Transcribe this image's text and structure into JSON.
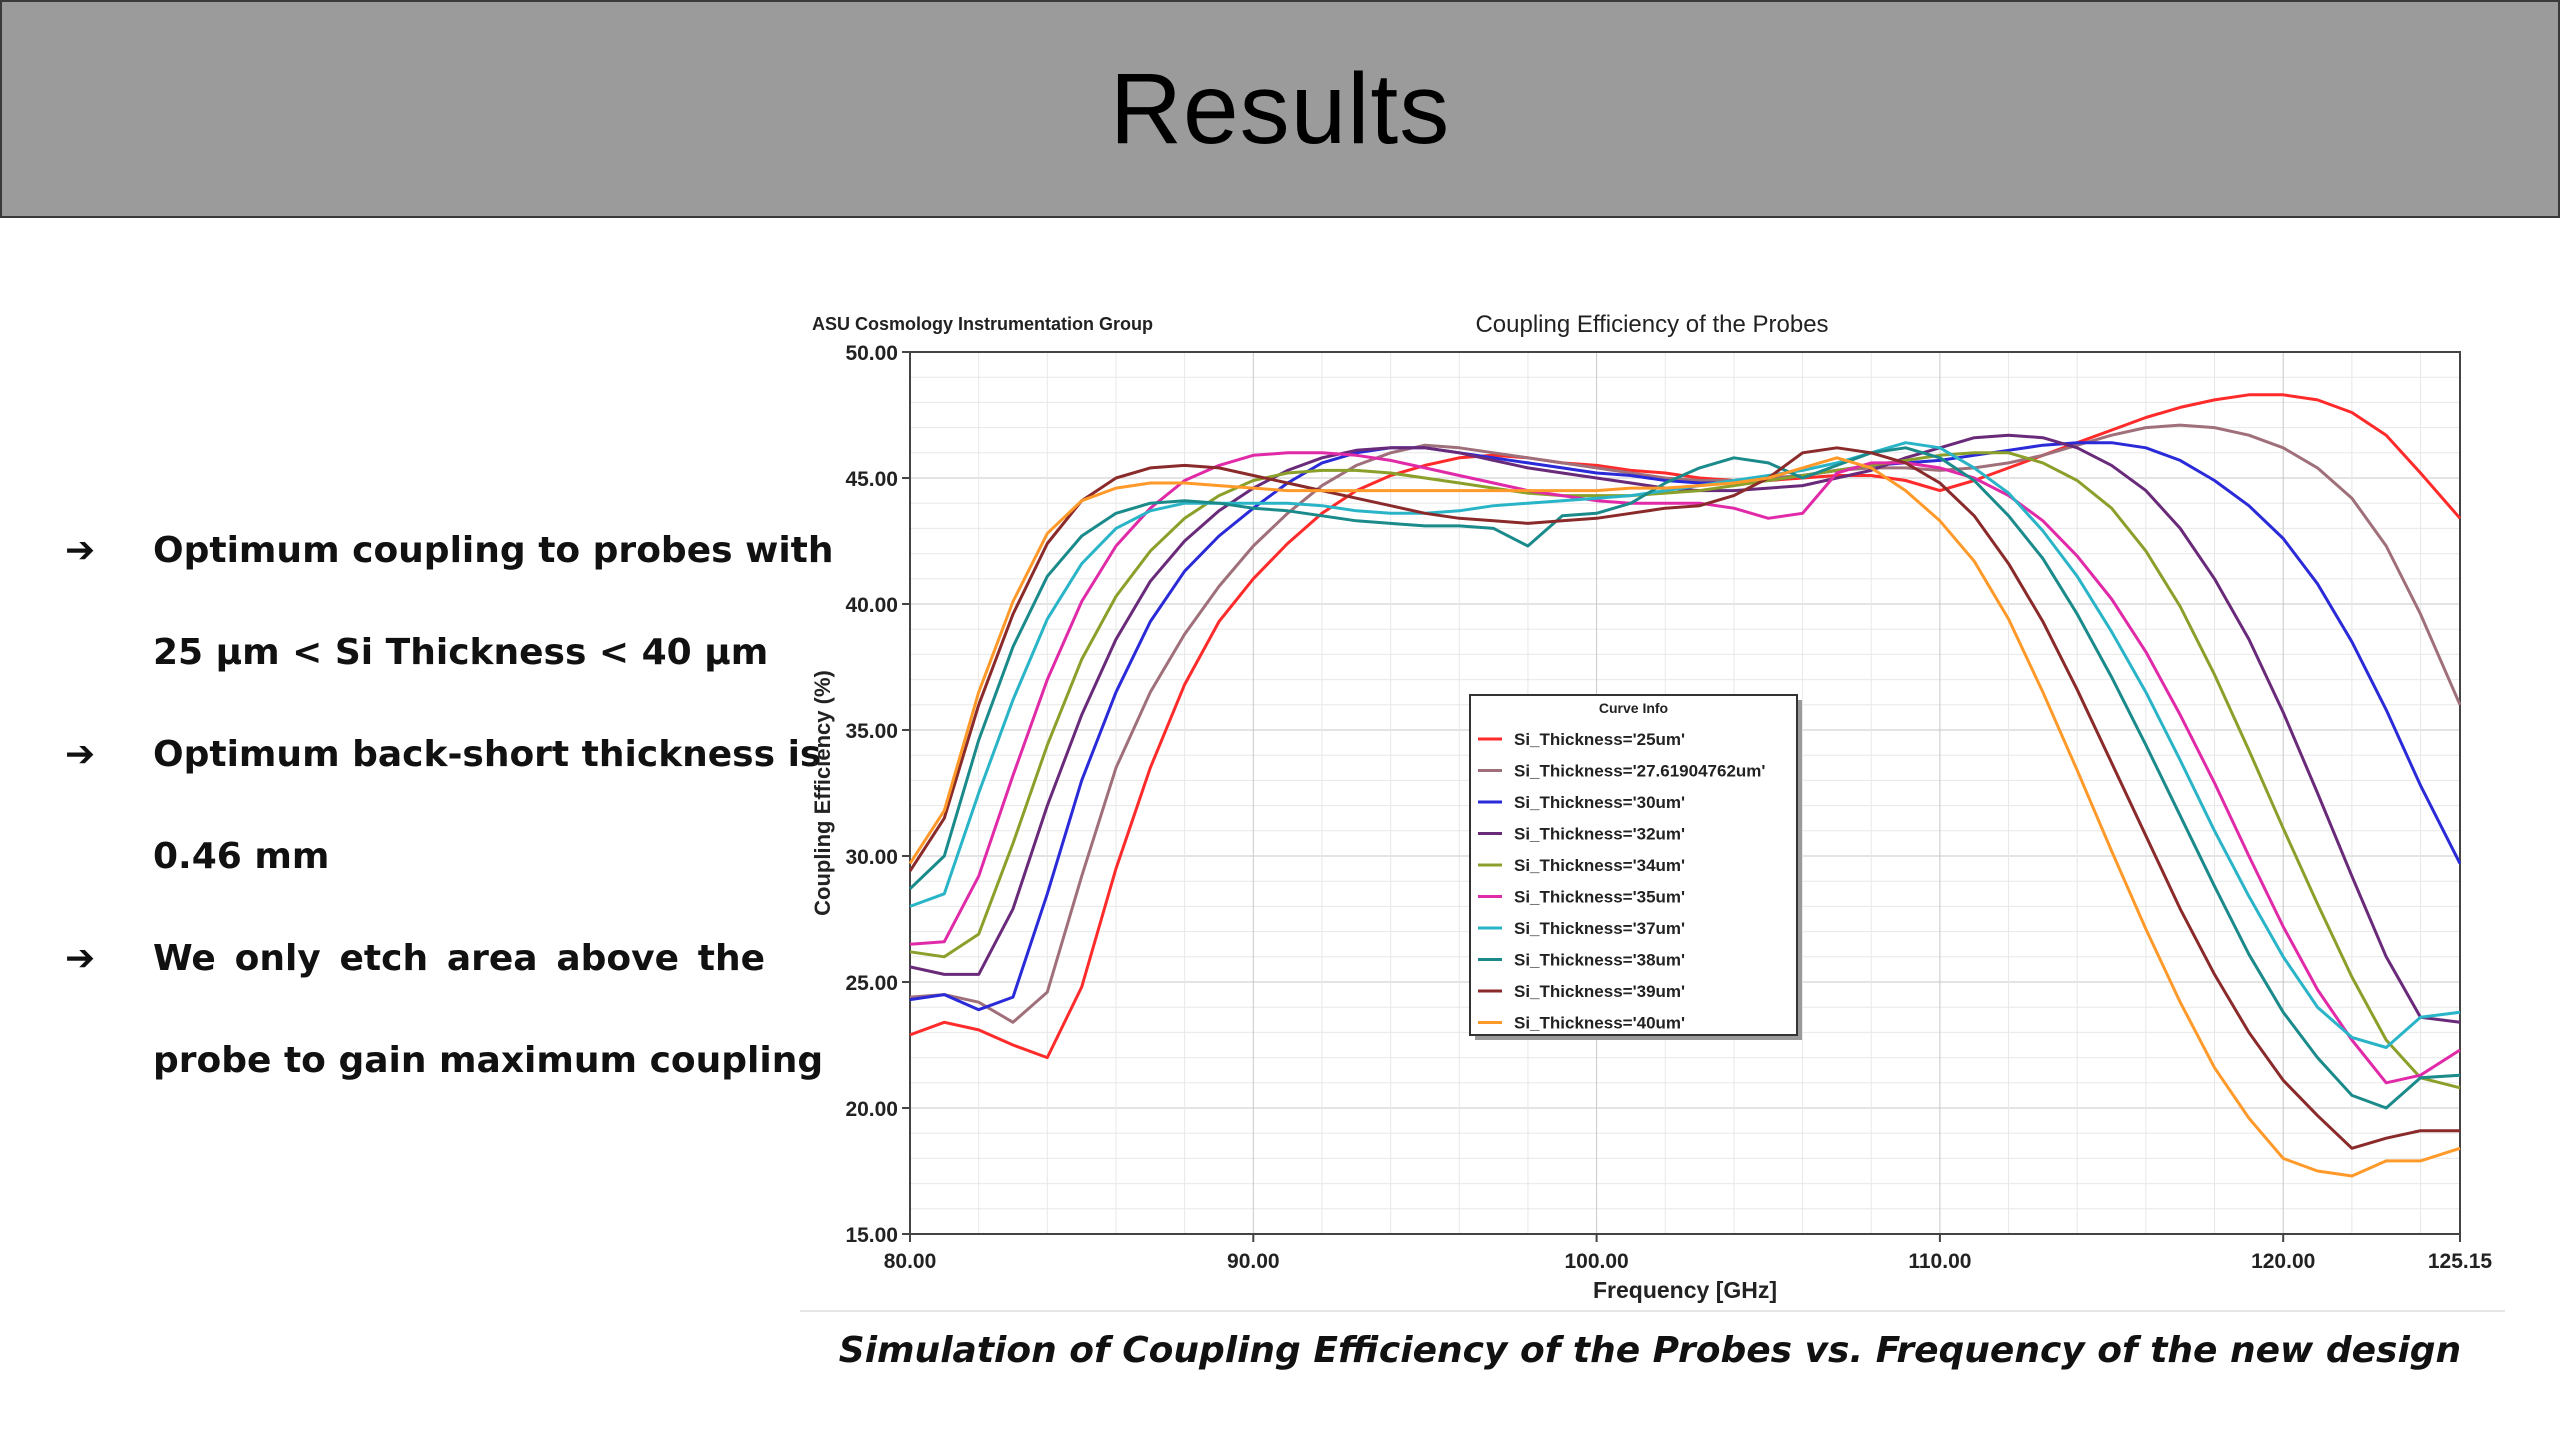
{
  "slide": {
    "title": "Results",
    "bullets": [
      {
        "lines": [
          "Optimum coupling to probes with",
          "25 µm < Si Thickness < 40 µm"
        ]
      },
      {
        "lines": [
          "Optimum back-short thickness is",
          "0.46 mm"
        ]
      },
      {
        "lines": [
          "We only etch area above the",
          "probe to gain maximum coupling"
        ]
      }
    ],
    "caption": "Simulation of Coupling Efficiency of the Probes vs. Frequency of the new design"
  },
  "chart_data": {
    "type": "line",
    "header_left": "ASU Cosmology Instrumentation Group",
    "title": "Coupling Efficiency of  the Probes",
    "xlabel": "Frequency [GHz]",
    "ylabel": "Coupling Efficiency (%)",
    "xlim": [
      80.0,
      125.15
    ],
    "ylim": [
      15.0,
      50.0
    ],
    "xticks": [
      "80.00",
      "90.00",
      "100.00",
      "110.00",
      "120.00",
      "125.15"
    ],
    "yticks": [
      "15.00",
      "20.00",
      "25.00",
      "30.00",
      "35.00",
      "40.00",
      "45.00",
      "50.00"
    ],
    "legend_title": "Curve Info",
    "legend_position": "center",
    "grid": true,
    "x": [
      80,
      81,
      82,
      83,
      84,
      85,
      86,
      87,
      88,
      89,
      90,
      91,
      92,
      93,
      94,
      95,
      96,
      97,
      98,
      99,
      100,
      101,
      102,
      103,
      104,
      105,
      106,
      107,
      108,
      109,
      110,
      111,
      112,
      113,
      114,
      115,
      116,
      117,
      118,
      119,
      120,
      121,
      122,
      123,
      124,
      125.15
    ],
    "series": [
      {
        "name": "Si_Thickness='25um'",
        "color": "#ff2a2a",
        "values": [
          22.9,
          23.4,
          23.1,
          22.5,
          22.0,
          24.8,
          29.5,
          33.5,
          36.8,
          39.3,
          41.0,
          42.4,
          43.6,
          44.5,
          45.1,
          45.5,
          45.8,
          45.9,
          45.8,
          45.6,
          45.5,
          45.3,
          45.2,
          45.0,
          44.9,
          44.9,
          45.0,
          45.1,
          45.1,
          44.9,
          44.5,
          44.9,
          45.4,
          45.9,
          46.4,
          46.9,
          47.4,
          47.8,
          48.1,
          48.3,
          48.3,
          48.1,
          47.6,
          46.7,
          45.2,
          43.4
        ]
      },
      {
        "name": "Si_Thickness='27.61904762um'",
        "color": "#a0707a",
        "values": [
          24.4,
          24.5,
          24.2,
          23.4,
          24.6,
          29.2,
          33.5,
          36.5,
          38.8,
          40.7,
          42.3,
          43.6,
          44.7,
          45.5,
          46.0,
          46.3,
          46.2,
          46.0,
          45.8,
          45.6,
          45.4,
          45.2,
          45.0,
          44.9,
          44.9,
          45.0,
          45.1,
          45.3,
          45.4,
          45.4,
          45.3,
          45.4,
          45.6,
          45.9,
          46.3,
          46.7,
          47.0,
          47.1,
          47.0,
          46.7,
          46.2,
          45.4,
          44.2,
          42.3,
          39.6,
          36.0
        ]
      },
      {
        "name": "Si_Thickness='30um'",
        "color": "#2a2ad8",
        "values": [
          24.3,
          24.5,
          23.9,
          24.4,
          28.5,
          33.0,
          36.5,
          39.3,
          41.3,
          42.7,
          43.8,
          44.8,
          45.6,
          46.0,
          46.2,
          46.2,
          46.0,
          45.8,
          45.6,
          45.4,
          45.2,
          45.1,
          44.9,
          44.8,
          44.8,
          44.9,
          45.1,
          45.3,
          45.5,
          45.6,
          45.7,
          45.9,
          46.1,
          46.3,
          46.4,
          46.4,
          46.2,
          45.7,
          44.9,
          43.9,
          42.6,
          40.8,
          38.5,
          35.8,
          32.8,
          29.7
        ]
      },
      {
        "name": "Si_Thickness='32um'",
        "color": "#6a2a7a",
        "values": [
          25.6,
          25.3,
          25.3,
          27.9,
          32.0,
          35.6,
          38.6,
          40.9,
          42.5,
          43.7,
          44.6,
          45.3,
          45.8,
          46.1,
          46.2,
          46.2,
          46.0,
          45.7,
          45.4,
          45.2,
          45.0,
          44.8,
          44.6,
          44.5,
          44.5,
          44.6,
          44.7,
          45.0,
          45.3,
          45.8,
          46.2,
          46.6,
          46.7,
          46.6,
          46.2,
          45.5,
          44.5,
          43.0,
          41.0,
          38.6,
          35.7,
          32.5,
          29.2,
          26.0,
          23.6,
          23.4
        ]
      },
      {
        "name": "Si_Thickness='34um'",
        "color": "#8aa02a",
        "values": [
          26.2,
          26.0,
          26.9,
          30.5,
          34.4,
          37.8,
          40.3,
          42.1,
          43.4,
          44.3,
          44.9,
          45.2,
          45.3,
          45.3,
          45.2,
          45.0,
          44.8,
          44.6,
          44.4,
          44.3,
          44.3,
          44.3,
          44.4,
          44.5,
          44.7,
          44.9,
          45.1,
          45.3,
          45.5,
          45.7,
          45.9,
          46.0,
          46.0,
          45.6,
          44.9,
          43.8,
          42.1,
          39.9,
          37.2,
          34.2,
          31.1,
          28.1,
          25.2,
          22.7,
          21.2,
          20.8
        ]
      },
      {
        "name": "Si_Thickness='35um'",
        "color": "#e02aa8",
        "values": [
          26.5,
          26.6,
          29.2,
          33.2,
          37.0,
          40.1,
          42.3,
          43.8,
          44.9,
          45.5,
          45.9,
          46.0,
          46.0,
          45.9,
          45.7,
          45.4,
          45.1,
          44.8,
          44.5,
          44.3,
          44.1,
          44.0,
          44.0,
          44.0,
          43.8,
          43.4,
          43.6,
          45.2,
          45.6,
          45.6,
          45.4,
          45.0,
          44.3,
          43.3,
          41.9,
          40.2,
          38.1,
          35.6,
          32.9,
          30.0,
          27.2,
          24.7,
          22.7,
          21.0,
          21.3,
          22.3
        ]
      },
      {
        "name": "Si_Thickness='37um'",
        "color": "#2ab4c8",
        "values": [
          28.0,
          28.5,
          32.5,
          36.2,
          39.4,
          41.6,
          43.0,
          43.7,
          44.0,
          44.0,
          44.0,
          44.0,
          43.9,
          43.7,
          43.6,
          43.6,
          43.7,
          43.9,
          44.0,
          44.1,
          44.2,
          44.3,
          44.5,
          44.7,
          44.9,
          45.1,
          45.3,
          45.6,
          46.0,
          46.4,
          46.2,
          45.4,
          44.4,
          42.9,
          41.1,
          38.9,
          36.5,
          33.8,
          31.0,
          28.4,
          26.0,
          24.0,
          22.8,
          22.4,
          23.6,
          23.8
        ]
      },
      {
        "name": "Si_Thickness='38um'",
        "color": "#1a8a8a",
        "values": [
          28.7,
          30.0,
          34.6,
          38.3,
          41.1,
          42.7,
          43.6,
          44.0,
          44.1,
          44.0,
          43.8,
          43.7,
          43.5,
          43.3,
          43.2,
          43.1,
          43.1,
          43.0,
          42.3,
          43.5,
          43.6,
          44.0,
          44.8,
          45.4,
          45.8,
          45.6,
          45.0,
          45.5,
          46.0,
          46.2,
          45.8,
          44.9,
          43.5,
          41.8,
          39.6,
          37.1,
          34.4,
          31.6,
          28.8,
          26.1,
          23.8,
          22.0,
          20.5,
          20.0,
          21.2,
          21.3
        ]
      },
      {
        "name": "Si_Thickness='39um'",
        "color": "#8a2a2a",
        "values": [
          29.4,
          31.5,
          36.0,
          39.6,
          42.4,
          44.1,
          45.0,
          45.4,
          45.5,
          45.4,
          45.1,
          44.8,
          44.5,
          44.2,
          43.9,
          43.6,
          43.4,
          43.3,
          43.2,
          43.3,
          43.4,
          43.6,
          43.8,
          43.9,
          44.3,
          45.0,
          46.0,
          46.2,
          46.0,
          45.6,
          44.8,
          43.5,
          41.6,
          39.3,
          36.6,
          33.7,
          30.8,
          27.9,
          25.3,
          23.0,
          21.1,
          19.7,
          18.4,
          18.8,
          19.1,
          19.1
        ]
      },
      {
        "name": "Si_Thickness='40um'",
        "color": "#ff9a2a",
        "values": [
          29.7,
          31.8,
          36.5,
          40.1,
          42.8,
          44.1,
          44.6,
          44.8,
          44.8,
          44.7,
          44.6,
          44.5,
          44.5,
          44.5,
          44.5,
          44.5,
          44.5,
          44.5,
          44.5,
          44.5,
          44.5,
          44.6,
          44.6,
          44.7,
          44.8,
          45.0,
          45.4,
          45.8,
          45.4,
          44.5,
          43.3,
          41.7,
          39.4,
          36.5,
          33.4,
          30.2,
          27.1,
          24.2,
          21.6,
          19.6,
          18.0,
          17.5,
          17.3,
          17.9,
          17.9,
          18.4
        ]
      }
    ]
  }
}
